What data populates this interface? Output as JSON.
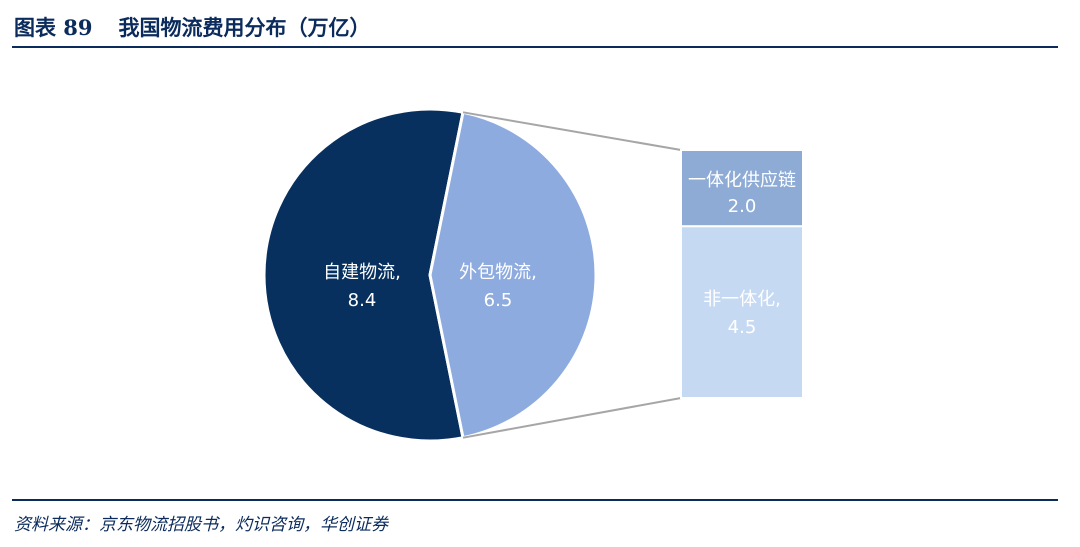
{
  "header": {
    "figure_label": "图表 89",
    "title": "我国物流费用分布（万亿）"
  },
  "source": "资料来源：京东物流招股书，灼识咨询，华创证券",
  "colors": {
    "header": "#0b2b5c",
    "self_built": "#07305f",
    "outsourced": "#8eabdf",
    "integrated": "#8eabd6",
    "non_integrated": "#c6d9f2",
    "connector": "#a6a6a6"
  },
  "chart_data": {
    "type": "pie",
    "title": "我国物流费用分布（万亿）",
    "slices": [
      {
        "label": "自建物流,",
        "value": 8.4,
        "value_text": "8.4"
      },
      {
        "label": "外包物流,",
        "value": 6.5,
        "value_text": "6.5"
      }
    ],
    "breakdown": {
      "of": "外包物流,",
      "type": "bar-of-pie",
      "segments": [
        {
          "label": "一体化供应链",
          "value": 2.0,
          "value_text": "2.0"
        },
        {
          "label": "非一体化,",
          "value": 4.5,
          "value_text": "4.5"
        }
      ]
    }
  }
}
